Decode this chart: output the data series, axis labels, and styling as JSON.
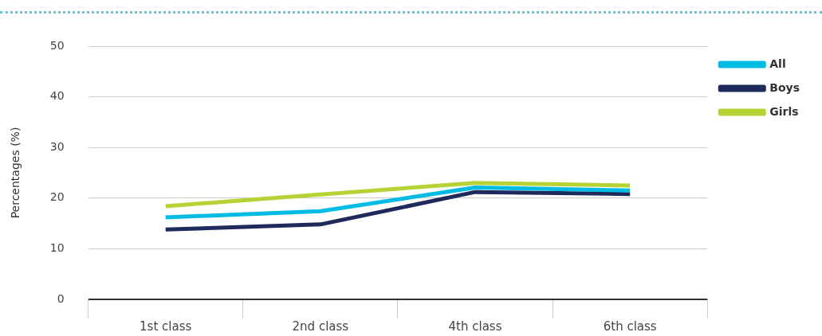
{
  "chart_data": {
    "type": "line",
    "ylabel": "Percentages (%)",
    "categories": [
      "1st class",
      "2nd class",
      "4th class",
      "6th class"
    ],
    "series": [
      {
        "name": "All",
        "color": "#00bce4",
        "values": [
          16.2,
          17.4,
          22.1,
          21.5
        ]
      },
      {
        "name": "Boys",
        "color": "#1f2a5c",
        "values": [
          13.8,
          14.8,
          21.2,
          20.8
        ]
      },
      {
        "name": "Girls",
        "color": "#b5d334",
        "values": [
          18.4,
          20.7,
          23.0,
          22.5
        ]
      }
    ],
    "ylim": [
      0,
      50
    ],
    "yticks": [
      0,
      10,
      20,
      30,
      40,
      50
    ],
    "grid": "y",
    "legend": "top right",
    "marker": "none",
    "line_style": "solid"
  }
}
